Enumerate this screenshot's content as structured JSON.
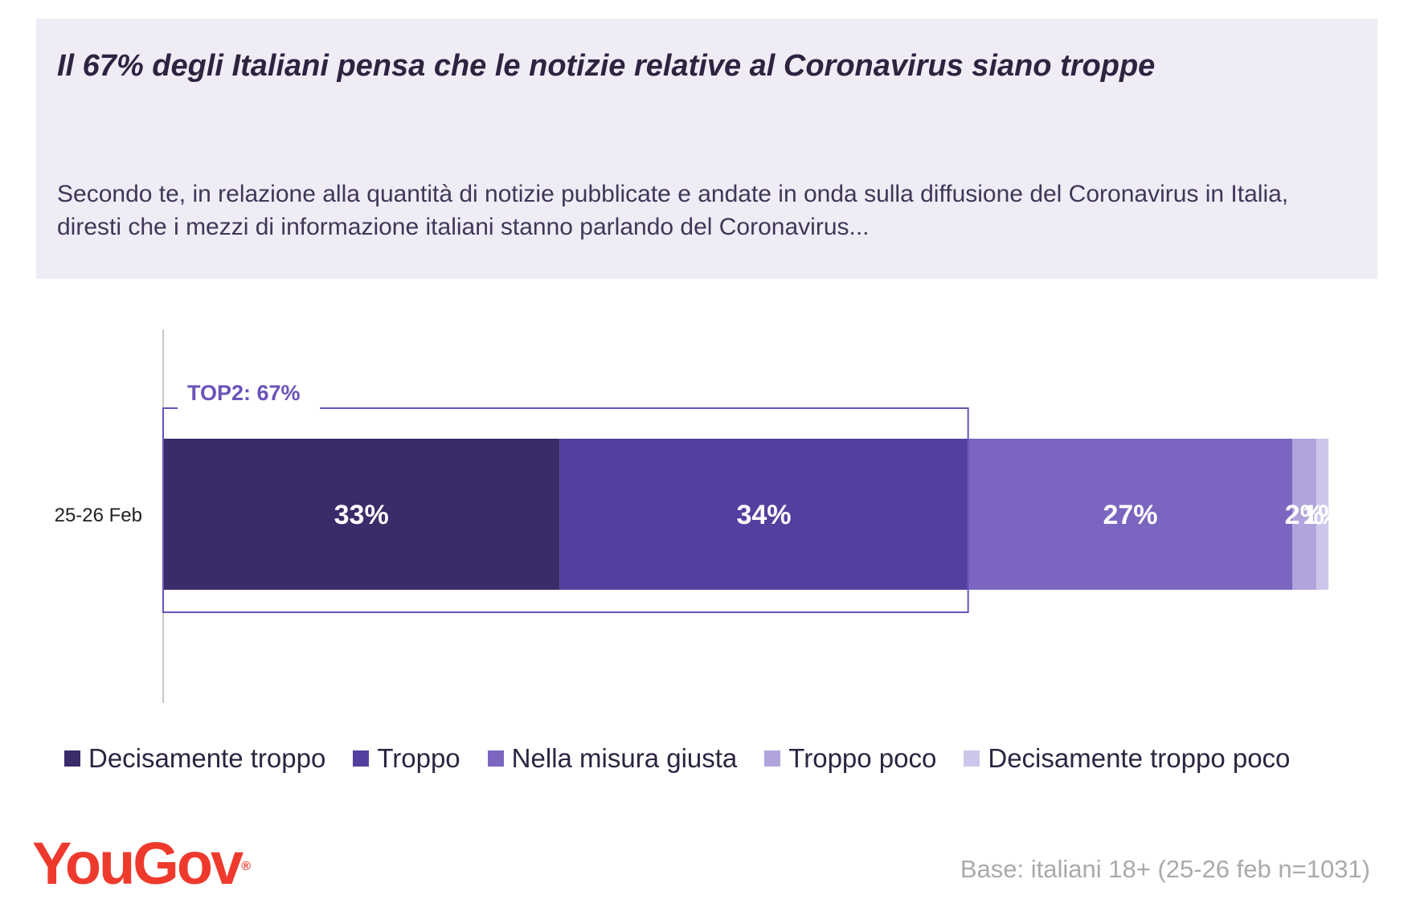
{
  "header": {
    "title": "Il 67% degli Italiani pensa che le notizie relative al Coronavirus siano troppe",
    "question": "Secondo te, in relazione alla quantità di notizie pubblicate e andate in onda sulla diffusione del Coronavirus in Italia, diresti che i mezzi di informazione italiani stanno parlando del Coronavirus..."
  },
  "chart_data": {
    "type": "bar",
    "orientation": "horizontal",
    "stacked": true,
    "categories": [
      "25-26 Feb"
    ],
    "series": [
      {
        "name": "Decisamente troppo",
        "values": [
          33
        ],
        "label": "33%",
        "color": "#3a2b69"
      },
      {
        "name": "Troppo",
        "values": [
          34
        ],
        "label": "34%",
        "color": "#553f9e"
      },
      {
        "name": "Nella misura giusta",
        "values": [
          27
        ],
        "label": "27%",
        "color": "#7b65c0"
      },
      {
        "name": "Troppo poco",
        "values": [
          2
        ],
        "label": "2%",
        "color": "#b1a4dc"
      },
      {
        "name": "Decisamente troppo poco",
        "values": [
          1
        ],
        "label": "1%",
        "color": "#cec6ea"
      }
    ],
    "annotation": {
      "text": "TOP2: 67%",
      "covers_series": [
        0,
        1
      ],
      "color": "#6a52b8"
    },
    "legend_position": "bottom",
    "grid": false
  },
  "footer": {
    "logo_text": "YouGov",
    "logo_mark": "®",
    "base_note": "Base: italiani 18+ (25-26 feb n=1031)"
  }
}
